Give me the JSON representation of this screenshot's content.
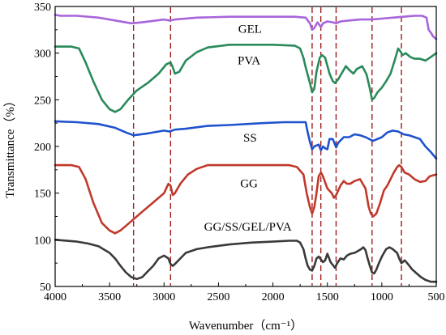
{
  "chart_data": {
    "type": "line",
    "xlabel": "Wavenumber（cm⁻¹）",
    "ylabel": "Transmittance（%）",
    "xlim": [
      4000,
      500
    ],
    "ylim": [
      50,
      350
    ],
    "x_ticks": [
      4000,
      3500,
      3000,
      2500,
      2000,
      1500,
      1000,
      500
    ],
    "y_ticks": [
      50,
      100,
      150,
      200,
      250,
      300,
      350
    ],
    "grid": false,
    "reference_lines": {
      "wavenumbers": [
        3280,
        2940,
        1640,
        1560,
        1420,
        1090,
        820
      ],
      "color": "#a01c1c",
      "style": "dashed"
    },
    "series": [
      {
        "name": "GEL",
        "color": "#a865db",
        "label_at": [
          2210,
          322
        ],
        "points": [
          [
            4000,
            341
          ],
          [
            3950,
            340
          ],
          [
            3800,
            340
          ],
          [
            3600,
            338
          ],
          [
            3450,
            335
          ],
          [
            3300,
            332
          ],
          [
            3200,
            333
          ],
          [
            3000,
            336
          ],
          [
            2950,
            335
          ],
          [
            2900,
            336
          ],
          [
            2700,
            338
          ],
          [
            2400,
            339
          ],
          [
            2000,
            339
          ],
          [
            1800,
            339
          ],
          [
            1700,
            338
          ],
          [
            1660,
            332
          ],
          [
            1640,
            325
          ],
          [
            1620,
            327
          ],
          [
            1590,
            333
          ],
          [
            1560,
            328
          ],
          [
            1540,
            332
          ],
          [
            1500,
            334
          ],
          [
            1450,
            333
          ],
          [
            1420,
            332
          ],
          [
            1380,
            334
          ],
          [
            1300,
            335
          ],
          [
            1200,
            336
          ],
          [
            1090,
            336
          ],
          [
            1000,
            337
          ],
          [
            900,
            338
          ],
          [
            700,
            340
          ],
          [
            630,
            340
          ],
          [
            590,
            338
          ],
          [
            570,
            325
          ],
          [
            550,
            322
          ],
          [
            530,
            318
          ],
          [
            500,
            315
          ]
        ]
      },
      {
        "name": "PVA",
        "color": "#2a8a5c",
        "label_at": [
          2220,
          288
        ],
        "points": [
          [
            4000,
            307
          ],
          [
            3850,
            307
          ],
          [
            3780,
            305
          ],
          [
            3720,
            290
          ],
          [
            3650,
            270
          ],
          [
            3570,
            250
          ],
          [
            3500,
            240
          ],
          [
            3450,
            237
          ],
          [
            3400,
            240
          ],
          [
            3330,
            250
          ],
          [
            3250,
            260
          ],
          [
            3150,
            268
          ],
          [
            3050,
            278
          ],
          [
            2980,
            288
          ],
          [
            2940,
            290
          ],
          [
            2920,
            285
          ],
          [
            2900,
            278
          ],
          [
            2860,
            280
          ],
          [
            2800,
            292
          ],
          [
            2700,
            301
          ],
          [
            2600,
            306
          ],
          [
            2400,
            309
          ],
          [
            2200,
            309
          ],
          [
            2000,
            309
          ],
          [
            1800,
            308
          ],
          [
            1750,
            305
          ],
          [
            1720,
            295
          ],
          [
            1700,
            285
          ],
          [
            1660,
            268
          ],
          [
            1640,
            258
          ],
          [
            1620,
            262
          ],
          [
            1600,
            280
          ],
          [
            1570,
            295
          ],
          [
            1550,
            298
          ],
          [
            1520,
            295
          ],
          [
            1480,
            278
          ],
          [
            1450,
            270
          ],
          [
            1430,
            268
          ],
          [
            1400,
            272
          ],
          [
            1360,
            280
          ],
          [
            1330,
            286
          ],
          [
            1300,
            282
          ],
          [
            1260,
            278
          ],
          [
            1230,
            283
          ],
          [
            1180,
            286
          ],
          [
            1140,
            277
          ],
          [
            1110,
            262
          ],
          [
            1090,
            250
          ],
          [
            1070,
            252
          ],
          [
            1040,
            258
          ],
          [
            1000,
            263
          ],
          [
            960,
            270
          ],
          [
            920,
            278
          ],
          [
            880,
            293
          ],
          [
            850,
            305
          ],
          [
            830,
            302
          ],
          [
            810,
            298
          ],
          [
            780,
            300
          ],
          [
            740,
            296
          ],
          [
            700,
            294
          ],
          [
            650,
            294
          ],
          [
            600,
            292
          ],
          [
            560,
            295
          ],
          [
            500,
            300
          ]
        ]
      },
      {
        "name": "SS",
        "color": "#1f52cc",
        "label_at": [
          2210,
          205
        ],
        "points": [
          [
            4000,
            227
          ],
          [
            3800,
            226
          ],
          [
            3600,
            224
          ],
          [
            3450,
            220
          ],
          [
            3350,
            215
          ],
          [
            3280,
            212
          ],
          [
            3150,
            214
          ],
          [
            3000,
            217
          ],
          [
            2950,
            216
          ],
          [
            2900,
            218
          ],
          [
            2800,
            219
          ],
          [
            2600,
            222
          ],
          [
            2400,
            223
          ],
          [
            2100,
            225
          ],
          [
            1900,
            226
          ],
          [
            1750,
            226
          ],
          [
            1700,
            226
          ],
          [
            1680,
            215
          ],
          [
            1660,
            205
          ],
          [
            1640,
            197
          ],
          [
            1620,
            200
          ],
          [
            1600,
            201
          ],
          [
            1580,
            202
          ],
          [
            1560,
            196
          ],
          [
            1540,
            200
          ],
          [
            1520,
            198
          ],
          [
            1500,
            197
          ],
          [
            1480,
            208
          ],
          [
            1450,
            208
          ],
          [
            1420,
            199
          ],
          [
            1400,
            204
          ],
          [
            1350,
            210
          ],
          [
            1300,
            210
          ],
          [
            1250,
            213
          ],
          [
            1200,
            212
          ],
          [
            1150,
            210
          ],
          [
            1100,
            207
          ],
          [
            1080,
            206
          ],
          [
            1000,
            210
          ],
          [
            950,
            215
          ],
          [
            900,
            217
          ],
          [
            850,
            216
          ],
          [
            800,
            213
          ],
          [
            750,
            212
          ],
          [
            700,
            210
          ],
          [
            650,
            208
          ],
          [
            600,
            200
          ],
          [
            550,
            194
          ],
          [
            500,
            187
          ]
        ]
      },
      {
        "name": "GG",
        "color": "#c0392b",
        "label_at": [
          2220,
          156
        ],
        "points": [
          [
            4000,
            180
          ],
          [
            3850,
            180
          ],
          [
            3780,
            178
          ],
          [
            3720,
            165
          ],
          [
            3650,
            140
          ],
          [
            3570,
            118
          ],
          [
            3500,
            110
          ],
          [
            3450,
            107
          ],
          [
            3400,
            110
          ],
          [
            3300,
            120
          ],
          [
            3200,
            130
          ],
          [
            3100,
            140
          ],
          [
            3000,
            150
          ],
          [
            2960,
            160
          ],
          [
            2940,
            158
          ],
          [
            2920,
            148
          ],
          [
            2900,
            150
          ],
          [
            2850,
            160
          ],
          [
            2780,
            170
          ],
          [
            2700,
            176
          ],
          [
            2600,
            180
          ],
          [
            2400,
            180
          ],
          [
            2200,
            180
          ],
          [
            2000,
            180
          ],
          [
            1850,
            180
          ],
          [
            1780,
            178
          ],
          [
            1720,
            170
          ],
          [
            1690,
            150
          ],
          [
            1660,
            135
          ],
          [
            1640,
            128
          ],
          [
            1620,
            135
          ],
          [
            1600,
            150
          ],
          [
            1580,
            168
          ],
          [
            1560,
            172
          ],
          [
            1540,
            168
          ],
          [
            1500,
            155
          ],
          [
            1460,
            150
          ],
          [
            1440,
            145
          ],
          [
            1420,
            148
          ],
          [
            1380,
            158
          ],
          [
            1350,
            163
          ],
          [
            1320,
            160
          ],
          [
            1290,
            160
          ],
          [
            1250,
            163
          ],
          [
            1200,
            165
          ],
          [
            1150,
            155
          ],
          [
            1120,
            135
          ],
          [
            1100,
            128
          ],
          [
            1080,
            125
          ],
          [
            1050,
            128
          ],
          [
            1020,
            138
          ],
          [
            980,
            153
          ],
          [
            950,
            158
          ],
          [
            920,
            165
          ],
          [
            890,
            172
          ],
          [
            860,
            178
          ],
          [
            840,
            180
          ],
          [
            820,
            178
          ],
          [
            790,
            172
          ],
          [
            750,
            170
          ],
          [
            700,
            165
          ],
          [
            650,
            162
          ],
          [
            600,
            163
          ],
          [
            560,
            168
          ],
          [
            500,
            170
          ]
        ]
      },
      {
        "name": "GG/SS/GEL/PVA",
        "color": "#3a3a3a",
        "label_at": [
          2230,
          110
        ],
        "points": [
          [
            4000,
            100
          ],
          [
            3800,
            98
          ],
          [
            3700,
            96
          ],
          [
            3600,
            93
          ],
          [
            3500,
            86
          ],
          [
            3450,
            80
          ],
          [
            3400,
            72
          ],
          [
            3350,
            65
          ],
          [
            3300,
            60
          ],
          [
            3250,
            58
          ],
          [
            3200,
            60
          ],
          [
            3150,
            66
          ],
          [
            3100,
            72
          ],
          [
            3050,
            80
          ],
          [
            3000,
            83
          ],
          [
            2960,
            80
          ],
          [
            2940,
            74
          ],
          [
            2920,
            72
          ],
          [
            2900,
            74
          ],
          [
            2850,
            80
          ],
          [
            2800,
            86
          ],
          [
            2700,
            90
          ],
          [
            2600,
            92
          ],
          [
            2400,
            95
          ],
          [
            2200,
            97
          ],
          [
            2000,
            98
          ],
          [
            1850,
            99
          ],
          [
            1780,
            99
          ],
          [
            1750,
            97
          ],
          [
            1720,
            90
          ],
          [
            1700,
            80
          ],
          [
            1680,
            72
          ],
          [
            1660,
            68
          ],
          [
            1640,
            67
          ],
          [
            1620,
            72
          ],
          [
            1600,
            80
          ],
          [
            1580,
            82
          ],
          [
            1560,
            79
          ],
          [
            1540,
            76
          ],
          [
            1520,
            78
          ],
          [
            1500,
            85
          ],
          [
            1470,
            76
          ],
          [
            1450,
            73
          ],
          [
            1430,
            70
          ],
          [
            1410,
            75
          ],
          [
            1380,
            80
          ],
          [
            1350,
            79
          ],
          [
            1320,
            83
          ],
          [
            1290,
            85
          ],
          [
            1250,
            86
          ],
          [
            1220,
            88
          ],
          [
            1190,
            90
          ],
          [
            1170,
            92
          ],
          [
            1150,
            89
          ],
          [
            1130,
            80
          ],
          [
            1110,
            72
          ],
          [
            1090,
            65
          ],
          [
            1070,
            64
          ],
          [
            1050,
            68
          ],
          [
            1030,
            74
          ],
          [
            1000,
            82
          ],
          [
            980,
            86
          ],
          [
            960,
            90
          ],
          [
            930,
            92
          ],
          [
            900,
            90
          ],
          [
            880,
            88
          ],
          [
            860,
            86
          ],
          [
            840,
            80
          ],
          [
            820,
            75
          ],
          [
            790,
            78
          ],
          [
            760,
            74
          ],
          [
            720,
            68
          ],
          [
            680,
            64
          ],
          [
            640,
            60
          ],
          [
            600,
            57
          ],
          [
            550,
            55
          ],
          [
            500,
            55
          ]
        ]
      }
    ]
  }
}
